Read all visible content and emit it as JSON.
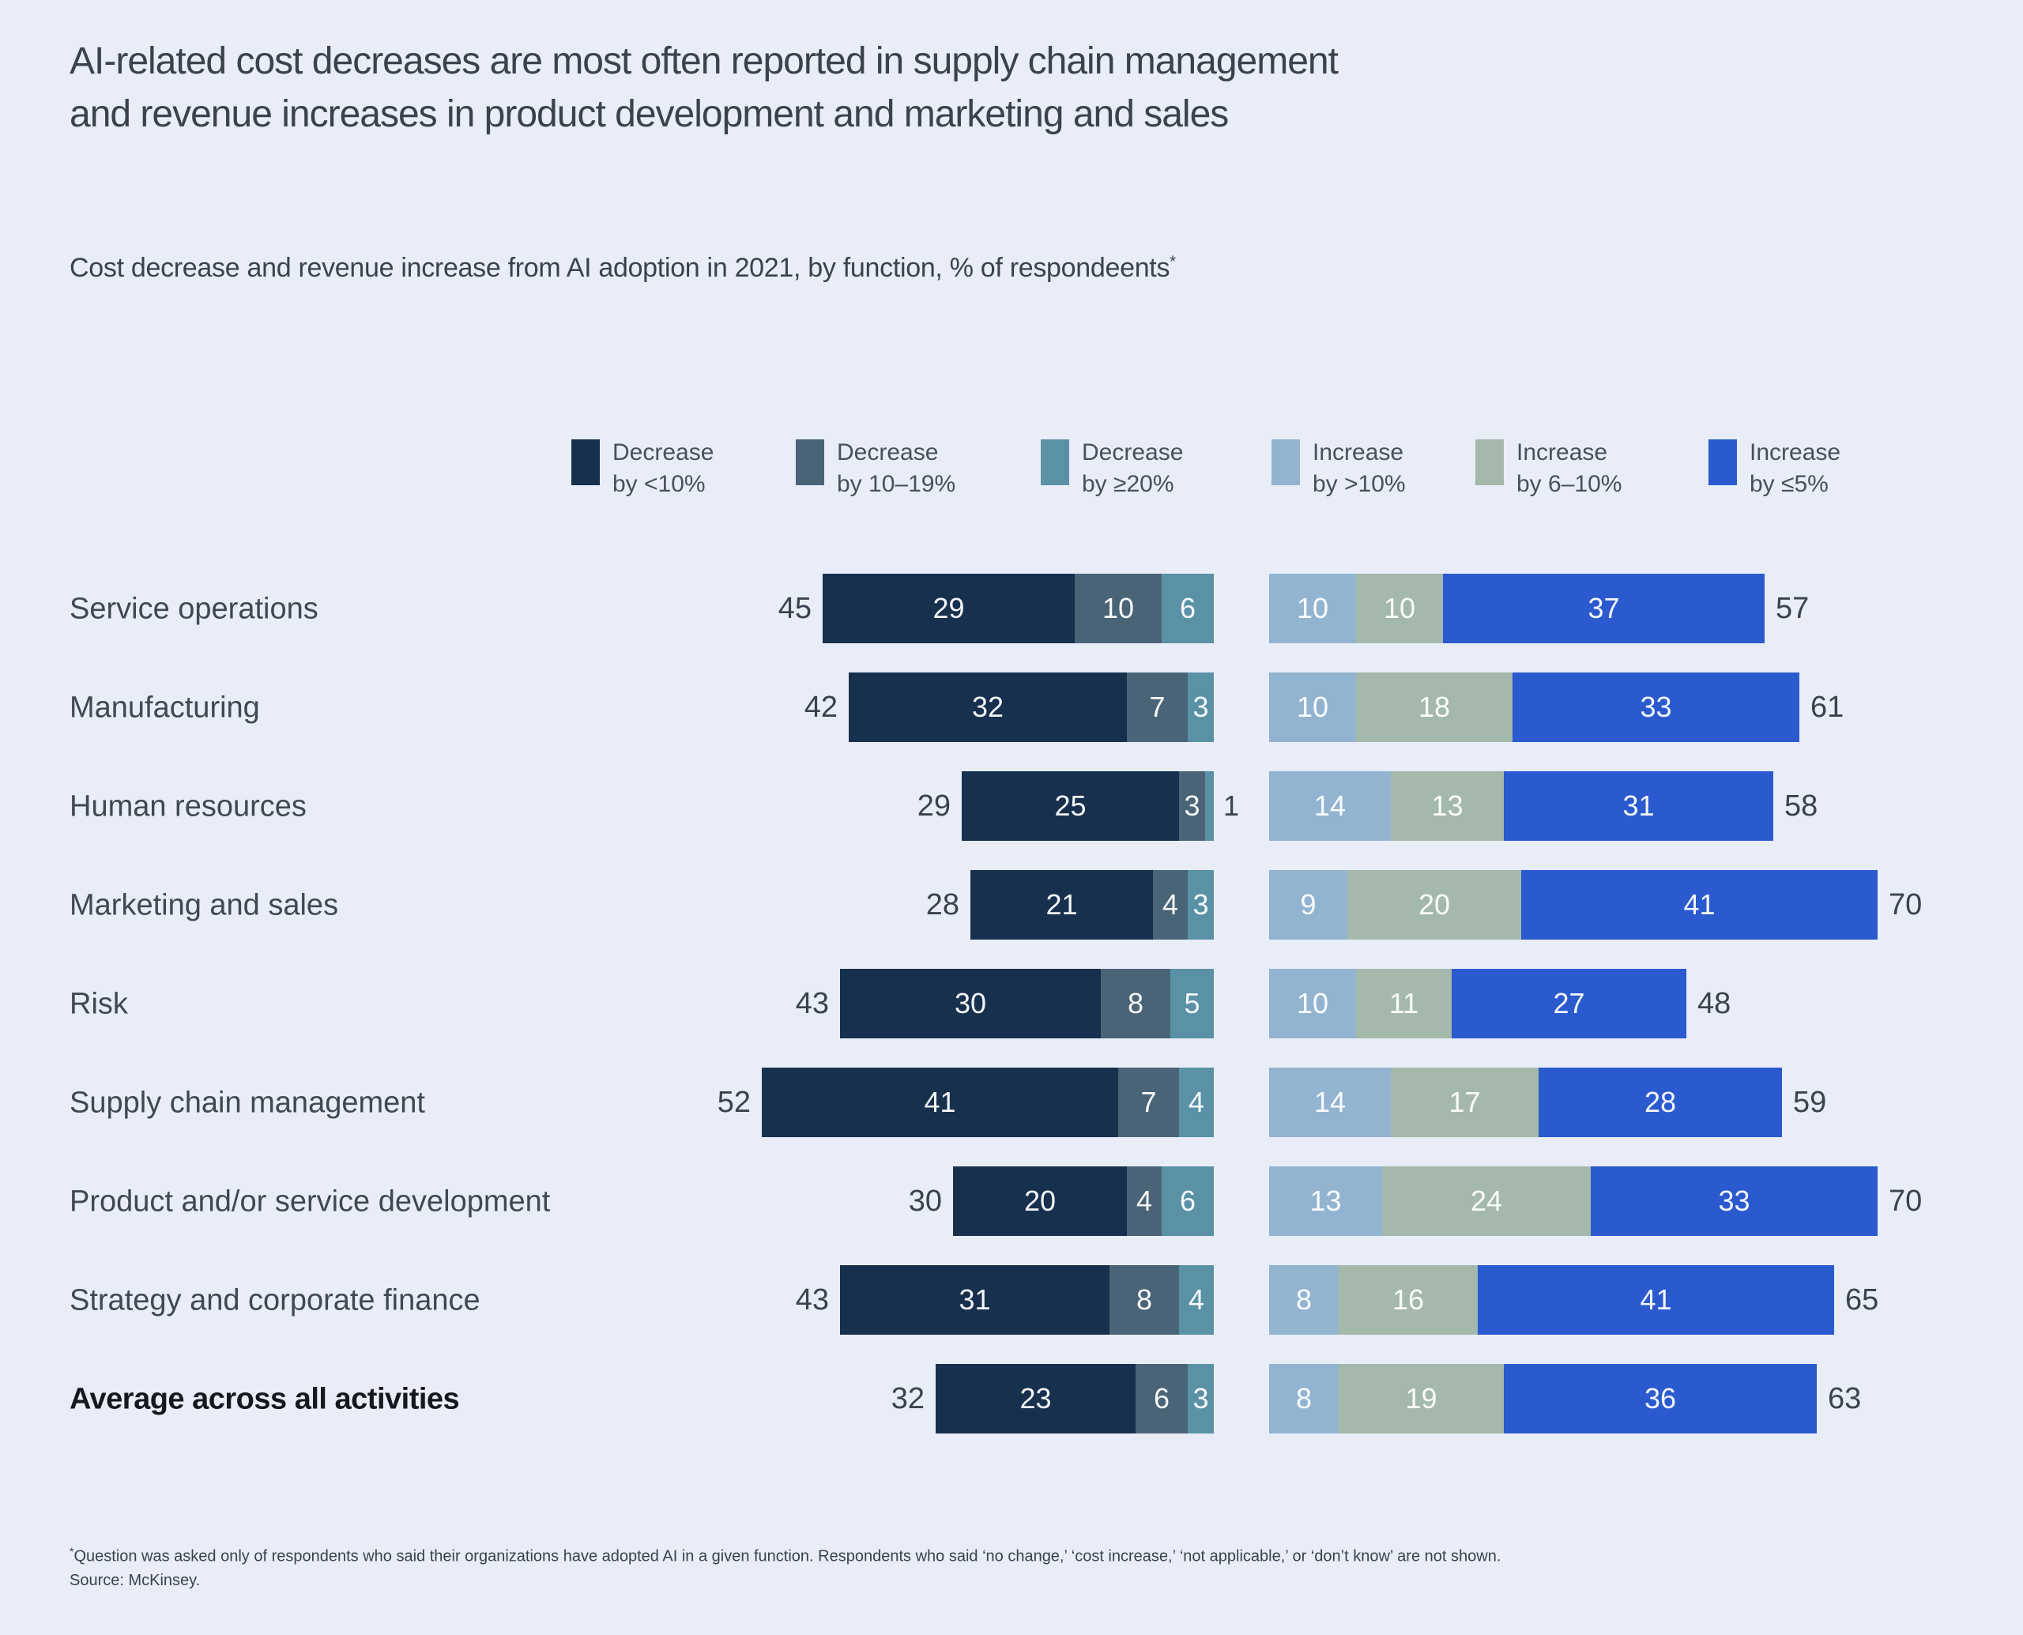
{
  "title": {
    "lines": [
      "AI-related cost decreases are most often reported in supply chain management",
      "and revenue increases in product development and marketing and sales"
    ]
  },
  "subtitle": {
    "text": "Cost decrease and revenue increase from AI adoption in 2021, by function, % of respondeents",
    "superscript": "*"
  },
  "legend": {
    "items": [
      {
        "line1": "Decrease",
        "line2": "by <10%",
        "color": "#17304E"
      },
      {
        "line1": "Decrease",
        "line2": "by 10–19%",
        "color": "#4A6477"
      },
      {
        "line1": "Decrease",
        "line2": "by ≥20%",
        "color": "#5A91A5"
      },
      {
        "line1": "Increase",
        "line2": "by >10%",
        "color": "#93B4D1"
      },
      {
        "line1": "Increase",
        "line2": "by 6–10%",
        "color": "#A4B9AB"
      },
      {
        "line1": "Increase",
        "line2": "by ≤5%",
        "color": "#2A5ACE"
      }
    ]
  },
  "chart_data": {
    "type": "bar",
    "subtype": "diverging-stacked-horizontal",
    "title": "Cost decrease and revenue increase from AI adoption in 2021, by function, % of respondents",
    "unit": "% of respondents",
    "legend_position": "top",
    "grid": false,
    "decrease_categories": [
      "Decrease by <10%",
      "Decrease by 10–19%",
      "Decrease by ≥20%"
    ],
    "increase_categories": [
      "Increase by >10%",
      "Increase by 6–10%",
      "Increase by ≤5%"
    ],
    "colors": {
      "decrease": [
        "#17304E",
        "#4A6477",
        "#5A91A5"
      ],
      "increase": [
        "#93B4D1",
        "#A4B9AB",
        "#2A5ACE"
      ]
    },
    "rows": [
      {
        "label": "Service operations",
        "bold": false,
        "decrease_total": 45,
        "decrease": [
          29,
          10,
          6
        ],
        "increase": [
          10,
          10,
          37
        ],
        "increase_total": 57
      },
      {
        "label": "Manufacturing",
        "bold": false,
        "decrease_total": 42,
        "decrease": [
          32,
          7,
          3
        ],
        "increase": [
          10,
          18,
          33
        ],
        "increase_total": 61
      },
      {
        "label": "Human resources",
        "bold": false,
        "decrease_total": 29,
        "decrease": [
          25,
          3,
          1
        ],
        "increase": [
          14,
          13,
          31
        ],
        "increase_total": 58,
        "decrease_outside_label_index": 2
      },
      {
        "label": "Marketing and sales",
        "bold": false,
        "decrease_total": 28,
        "decrease": [
          21,
          4,
          3
        ],
        "increase": [
          9,
          20,
          41
        ],
        "increase_total": 70
      },
      {
        "label": "Risk",
        "bold": false,
        "decrease_total": 43,
        "decrease": [
          30,
          8,
          5
        ],
        "increase": [
          10,
          11,
          27
        ],
        "increase_total": 48
      },
      {
        "label": "Supply chain management",
        "bold": false,
        "decrease_total": 52,
        "decrease": [
          41,
          7,
          4
        ],
        "increase": [
          14,
          17,
          28
        ],
        "increase_total": 59
      },
      {
        "label": "Product and/or service development",
        "bold": false,
        "decrease_total": 30,
        "decrease": [
          20,
          4,
          6
        ],
        "increase": [
          13,
          24,
          33
        ],
        "increase_total": 70
      },
      {
        "label": "Strategy and corporate finance",
        "bold": false,
        "decrease_total": 43,
        "decrease": [
          31,
          8,
          4
        ],
        "increase": [
          8,
          16,
          41
        ],
        "increase_total": 65
      },
      {
        "label": "Average across all activities",
        "bold": true,
        "decrease_total": 32,
        "decrease": [
          23,
          6,
          3
        ],
        "increase": [
          8,
          19,
          36
        ],
        "increase_total": 63
      }
    ]
  },
  "footnote": {
    "asterisk": "*",
    "line1": "Question was asked only of respondents who said their organizations have adopted AI in a given function. Respondents who said ‘no change,’ ‘cost increase,’ ‘not applicable,’ or ‘don’t know’ are not shown.",
    "line2": "Source: McKinsey."
  }
}
